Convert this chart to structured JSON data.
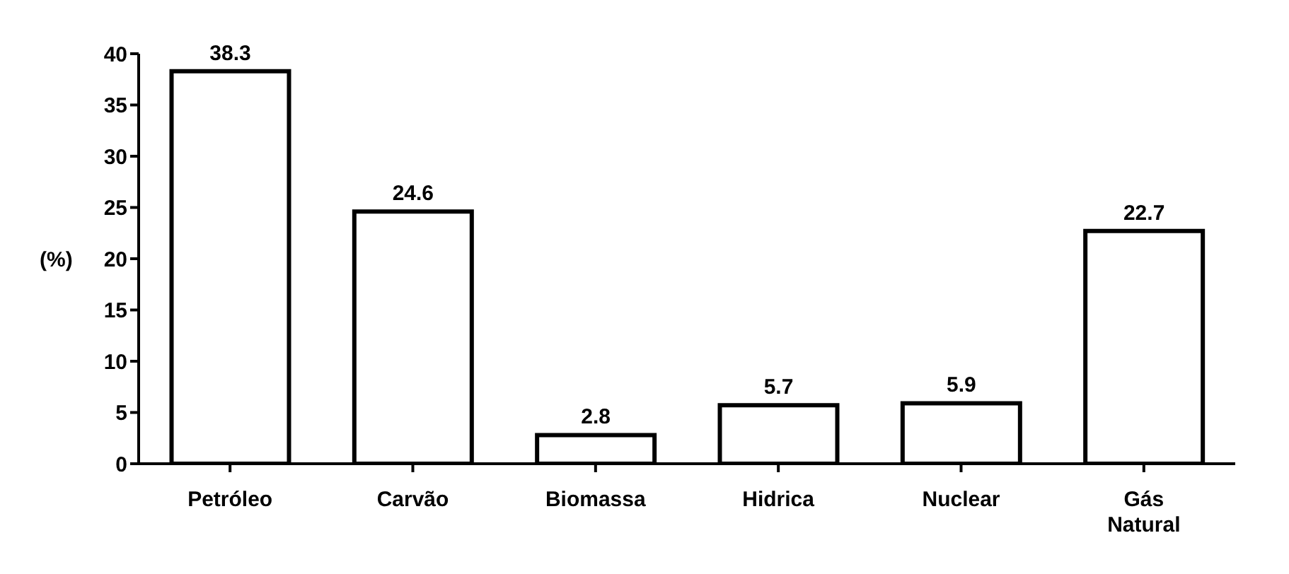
{
  "chart_data": {
    "type": "bar",
    "ylabel": "(%)",
    "categories": [
      "Petróleo",
      "Carvão",
      "Biomassa",
      "Hidrica",
      "Nuclear",
      "Gás Natural"
    ],
    "values": [
      38.3,
      24.6,
      2.8,
      5.7,
      5.9,
      22.7
    ],
    "color": "#ffffff",
    "ylim": [
      0,
      40
    ],
    "yticks": [
      0,
      5,
      10,
      15,
      20,
      25,
      30,
      35,
      40
    ],
    "data_labels": true,
    "grid": false,
    "legend": false
  }
}
